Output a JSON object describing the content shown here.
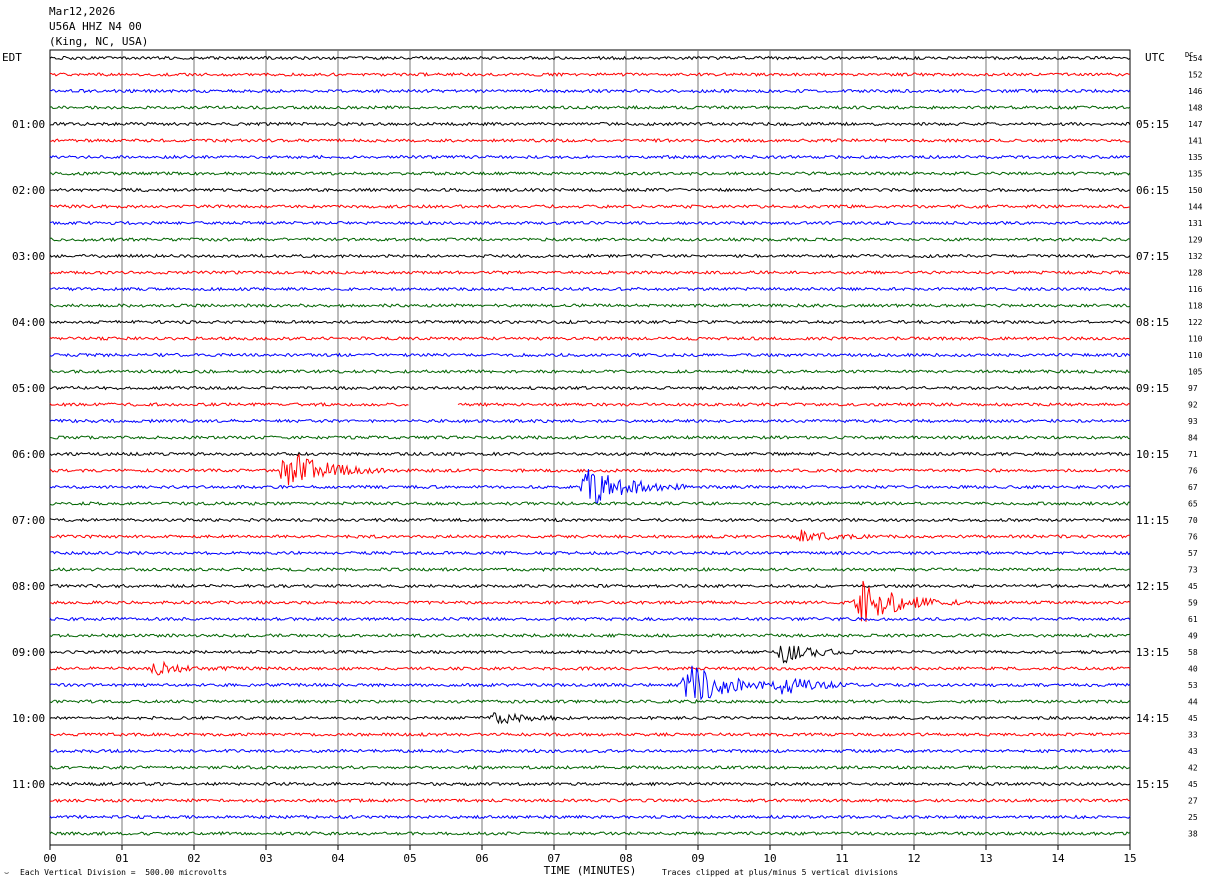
{
  "header": {
    "date": "Mar12,2026",
    "station": "U56A HHZ N4 00",
    "location": "(King, NC, USA)"
  },
  "footer": {
    "scale_note": "Each Vertical Division =  500.00 microvolts",
    "clip_note": "Traces clipped at plus/minus 5 vertical divisions",
    "corner_mark": "⌣"
  },
  "chart_data": {
    "type": "line",
    "title": "",
    "xlabel": "TIME (MINUTES)",
    "ylabel_left": "EDT",
    "ylabel_right": "UTC",
    "dc_label": "DC",
    "xlim": [
      0,
      15
    ],
    "x_tick_labels": [
      "00",
      "01",
      "02",
      "03",
      "04",
      "05",
      "06",
      "07",
      "08",
      "09",
      "10",
      "11",
      "12",
      "13",
      "14",
      "15"
    ],
    "grid": true,
    "trace_colors": [
      "#000000",
      "#ff0000",
      "#0000ff",
      "#006400"
    ],
    "traces_per_hour": 4,
    "trace_count": 48,
    "left_time_labels": [
      "01:00",
      "02:00",
      "03:00",
      "04:00",
      "05:00",
      "06:00",
      "07:00",
      "08:00",
      "09:00",
      "10:00",
      "11:00"
    ],
    "right_time_labels": [
      "05:15",
      "06:15",
      "07:15",
      "08:15",
      "09:15",
      "10:15",
      "11:15",
      "12:15",
      "13:15",
      "14:15",
      "15:15"
    ],
    "dc_offsets": [
      154,
      152,
      146,
      148,
      147,
      141,
      135,
      135,
      150,
      144,
      131,
      129,
      132,
      128,
      116,
      118,
      122,
      110,
      110,
      105,
      97,
      92,
      93,
      84,
      71,
      76,
      67,
      65,
      70,
      76,
      57,
      73,
      45,
      59,
      61,
      49,
      58,
      40,
      53,
      44,
      45,
      33,
      43,
      42,
      45,
      27,
      25,
      38
    ],
    "events": [
      {
        "trace": 25,
        "minute": 3.3,
        "amplitude": "large"
      },
      {
        "trace": 26,
        "minute": 7.5,
        "amplitude": "large"
      },
      {
        "trace": 29,
        "minute": 10.4,
        "amplitude": "small"
      },
      {
        "trace": 33,
        "minute": 11.3,
        "amplitude": "large"
      },
      {
        "trace": 36,
        "minute": 10.2,
        "amplitude": "medium"
      },
      {
        "trace": 37,
        "minute": 1.5,
        "amplitude": "small"
      },
      {
        "trace": 38,
        "minute": 8.9,
        "amplitude": "large"
      },
      {
        "trace": 38,
        "minute": 10.2,
        "amplitude": "medium"
      },
      {
        "trace": 40,
        "minute": 6.2,
        "amplitude": "small"
      }
    ],
    "gaps": [
      {
        "trace": 21,
        "from_minute": 5.0,
        "to_minute": 5.65
      }
    ]
  }
}
